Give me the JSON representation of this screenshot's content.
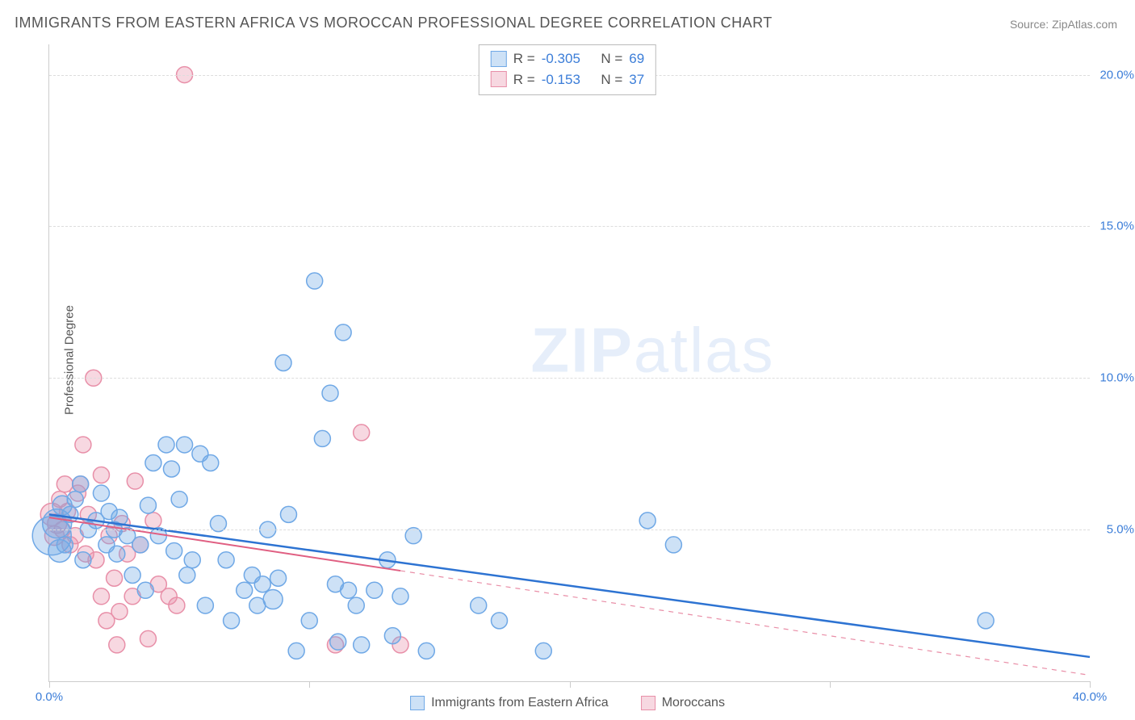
{
  "title": "IMMIGRANTS FROM EASTERN AFRICA VS MOROCCAN PROFESSIONAL DEGREE CORRELATION CHART",
  "source_label": "Source: ",
  "source_name": "ZipAtlas.com",
  "watermark": {
    "prefix": "ZIP",
    "suffix": "atlas"
  },
  "y_axis_title": "Professional Degree",
  "chart": {
    "type": "scatter",
    "xlim": [
      0,
      40
    ],
    "ylim": [
      0,
      21
    ],
    "x_ticks": [
      0,
      10,
      20,
      30,
      40
    ],
    "x_tick_labels": [
      "0.0%",
      "",
      "",
      "",
      "40.0%"
    ],
    "y_ticks": [
      5,
      10,
      15,
      20
    ],
    "y_tick_labels": [
      "5.0%",
      "10.0%",
      "15.0%",
      "20.0%"
    ],
    "grid_color": "#dddddd",
    "background": "#ffffff",
    "axis_color": "#cccccc",
    "tick_label_color": "#3b7dd8",
    "series": [
      {
        "name": "Immigrants from Eastern Africa",
        "color": "#6fa8e6",
        "fill": "rgba(111,168,230,0.35)",
        "stroke": "#6fa8e6",
        "marker_radius": 10,
        "stats": {
          "R": "-0.305",
          "N": "69"
        },
        "trend": {
          "x1": 0,
          "y1": 5.5,
          "x2": 40,
          "y2": 0.8,
          "solid_until_x": 40,
          "color": "#2d73d2",
          "width": 2.5
        },
        "points": [
          [
            0.1,
            4.8,
            24
          ],
          [
            0.3,
            5.2,
            18
          ],
          [
            0.4,
            4.3,
            14
          ],
          [
            0.5,
            5.8,
            12
          ],
          [
            0.6,
            4.5,
            10
          ],
          [
            0.8,
            5.5,
            10
          ],
          [
            1.0,
            6.0,
            10
          ],
          [
            1.2,
            6.5,
            10
          ],
          [
            1.3,
            4.0,
            10
          ],
          [
            1.5,
            5.0,
            10
          ],
          [
            1.8,
            5.3,
            10
          ],
          [
            2.0,
            6.2,
            10
          ],
          [
            2.2,
            4.5,
            10
          ],
          [
            2.3,
            5.6,
            10
          ],
          [
            2.5,
            5.0,
            10
          ],
          [
            2.6,
            4.2,
            10
          ],
          [
            2.7,
            5.4,
            10
          ],
          [
            3.0,
            4.8,
            10
          ],
          [
            3.2,
            3.5,
            10
          ],
          [
            3.5,
            4.5,
            10
          ],
          [
            3.7,
            3.0,
            10
          ],
          [
            3.8,
            5.8,
            10
          ],
          [
            4.0,
            7.2,
            10
          ],
          [
            4.2,
            4.8,
            10
          ],
          [
            4.5,
            7.8,
            10
          ],
          [
            4.7,
            7.0,
            10
          ],
          [
            4.8,
            4.3,
            10
          ],
          [
            5.0,
            6.0,
            10
          ],
          [
            5.2,
            7.8,
            10
          ],
          [
            5.3,
            3.5,
            10
          ],
          [
            5.5,
            4.0,
            10
          ],
          [
            5.8,
            7.5,
            10
          ],
          [
            6.0,
            2.5,
            10
          ],
          [
            6.2,
            7.2,
            10
          ],
          [
            6.5,
            5.2,
            10
          ],
          [
            6.8,
            4.0,
            10
          ],
          [
            7.0,
            2.0,
            10
          ],
          [
            7.5,
            3.0,
            10
          ],
          [
            7.8,
            3.5,
            10
          ],
          [
            8.0,
            2.5,
            10
          ],
          [
            8.2,
            3.2,
            10
          ],
          [
            8.4,
            5.0,
            10
          ],
          [
            8.6,
            2.7,
            12
          ],
          [
            8.8,
            3.4,
            10
          ],
          [
            9.0,
            10.5,
            10
          ],
          [
            9.2,
            5.5,
            10
          ],
          [
            9.5,
            1.0,
            10
          ],
          [
            10.0,
            2.0,
            10
          ],
          [
            10.2,
            13.2,
            10
          ],
          [
            10.5,
            8.0,
            10
          ],
          [
            10.8,
            9.5,
            10
          ],
          [
            11.0,
            3.2,
            10
          ],
          [
            11.1,
            1.3,
            10
          ],
          [
            11.3,
            11.5,
            10
          ],
          [
            11.5,
            3.0,
            10
          ],
          [
            11.8,
            2.5,
            10
          ],
          [
            12.0,
            1.2,
            10
          ],
          [
            12.5,
            3.0,
            10
          ],
          [
            13.0,
            4.0,
            10
          ],
          [
            13.2,
            1.5,
            10
          ],
          [
            13.5,
            2.8,
            10
          ],
          [
            14.0,
            4.8,
            10
          ],
          [
            14.5,
            1.0,
            10
          ],
          [
            16.5,
            2.5,
            10
          ],
          [
            17.3,
            2.0,
            10
          ],
          [
            19.0,
            1.0,
            10
          ],
          [
            23.0,
            5.3,
            10
          ],
          [
            24.0,
            4.5,
            10
          ],
          [
            36.0,
            2.0,
            10
          ]
        ]
      },
      {
        "name": "Moroccans",
        "color": "#e88fa8",
        "fill": "rgba(232,143,168,0.35)",
        "stroke": "#e88fa8",
        "marker_radius": 10,
        "stats": {
          "R": "-0.153",
          "N": "37"
        },
        "trend": {
          "x1": 0,
          "y1": 5.4,
          "x2": 40,
          "y2": 0.2,
          "solid_until_x": 13.5,
          "color": "#e05f82",
          "width": 2
        },
        "points": [
          [
            0.1,
            5.5,
            14
          ],
          [
            0.2,
            4.8,
            12
          ],
          [
            0.3,
            5.2,
            12
          ],
          [
            0.4,
            6.0,
            10
          ],
          [
            0.5,
            5.0,
            10
          ],
          [
            0.6,
            6.5,
            10
          ],
          [
            0.7,
            5.6,
            10
          ],
          [
            0.8,
            4.5,
            10
          ],
          [
            1.0,
            4.8,
            10
          ],
          [
            1.1,
            6.2,
            10
          ],
          [
            1.2,
            6.5,
            10
          ],
          [
            1.3,
            7.8,
            10
          ],
          [
            1.4,
            4.2,
            10
          ],
          [
            1.5,
            5.5,
            10
          ],
          [
            1.7,
            10.0,
            10
          ],
          [
            1.8,
            4.0,
            10
          ],
          [
            2.0,
            6.8,
            10
          ],
          [
            2.0,
            2.8,
            10
          ],
          [
            2.2,
            2.0,
            10
          ],
          [
            2.3,
            4.8,
            10
          ],
          [
            2.5,
            3.4,
            10
          ],
          [
            2.6,
            1.2,
            10
          ],
          [
            2.7,
            2.3,
            10
          ],
          [
            2.8,
            5.2,
            10
          ],
          [
            3.0,
            4.2,
            10
          ],
          [
            3.2,
            2.8,
            10
          ],
          [
            3.3,
            6.6,
            10
          ],
          [
            3.5,
            4.5,
            10
          ],
          [
            3.8,
            1.4,
            10
          ],
          [
            4.0,
            5.3,
            10
          ],
          [
            4.2,
            3.2,
            10
          ],
          [
            4.6,
            2.8,
            10
          ],
          [
            4.9,
            2.5,
            10
          ],
          [
            5.2,
            20.0,
            10
          ],
          [
            11.0,
            1.2,
            10
          ],
          [
            12.0,
            8.2,
            10
          ],
          [
            13.5,
            1.2,
            10
          ]
        ]
      }
    ]
  },
  "legend": {
    "series1_label": "Immigrants from Eastern Africa",
    "series2_label": "Moroccans"
  },
  "stats_labels": {
    "R": "R =",
    "N": "N ="
  }
}
